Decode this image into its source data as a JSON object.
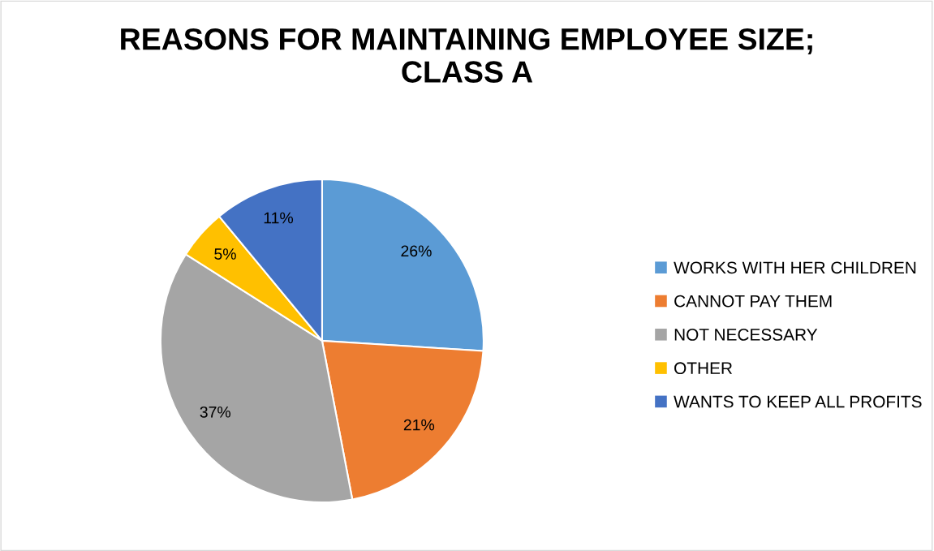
{
  "chart_data": {
    "type": "pie",
    "title": "REASONS FOR MAINTAINING EMPLOYEE SIZE;\nCLASS A",
    "categories": [
      "WORKS WITH HER CHILDREN",
      "CANNOT PAY THEM",
      "NOT NECESSARY",
      "OTHER",
      "WANTS TO KEEP ALL PROFITS"
    ],
    "values": [
      26,
      21,
      37,
      5,
      11
    ],
    "colors": [
      "#5b9bd5",
      "#ed7d31",
      "#a5a5a5",
      "#ffc000",
      "#4472c4"
    ],
    "value_labels": [
      "26%",
      "21%",
      "37%",
      "5%",
      "11%"
    ],
    "legend": "right"
  }
}
